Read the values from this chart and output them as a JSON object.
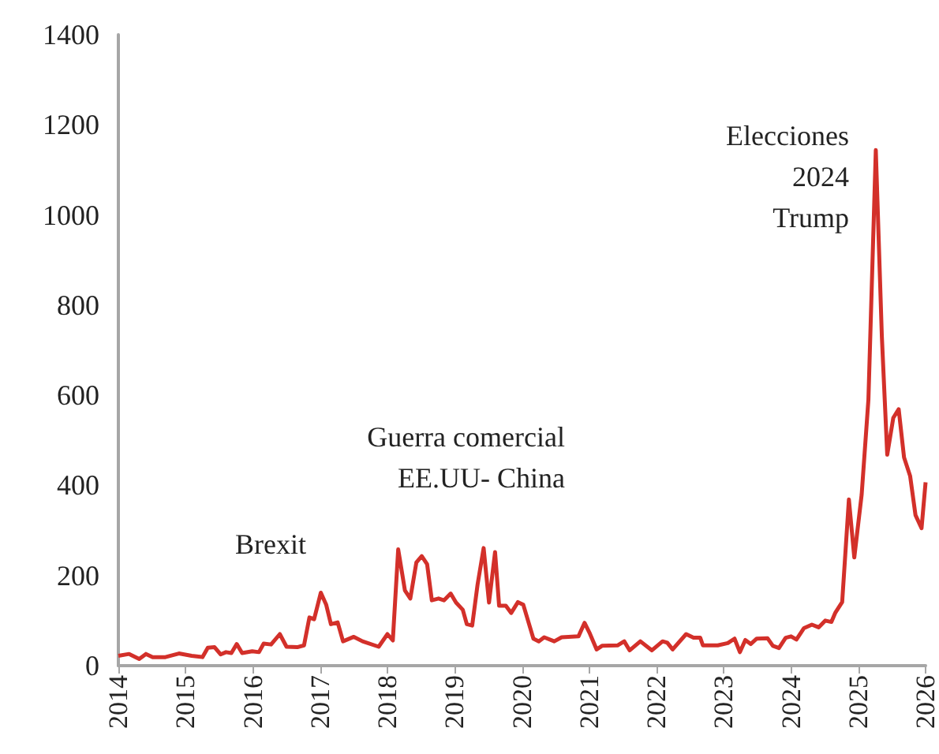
{
  "chart_data": {
    "type": "line",
    "x": [
      2014.0,
      2014.16,
      2014.31,
      2014.41,
      2014.51,
      2014.7,
      2014.9,
      2015.09,
      2015.25,
      2015.33,
      2015.43,
      2015.52,
      2015.6,
      2015.68,
      2015.76,
      2015.84,
      2015.99,
      2016.09,
      2016.16,
      2016.27,
      2016.4,
      2016.5,
      2016.66,
      2016.76,
      2016.84,
      2016.91,
      2017.01,
      2017.09,
      2017.16,
      2017.26,
      2017.34,
      2017.5,
      2017.63,
      2017.87,
      2018.0,
      2018.08,
      2018.16,
      2018.26,
      2018.34,
      2018.43,
      2018.51,
      2018.59,
      2018.66,
      2018.76,
      2018.84,
      2018.94,
      2019.02,
      2019.12,
      2019.18,
      2019.26,
      2019.34,
      2019.43,
      2019.51,
      2019.6,
      2019.66,
      2019.76,
      2019.84,
      2019.94,
      2020.02,
      2020.17,
      2020.25,
      2020.33,
      2020.48,
      2020.59,
      2020.84,
      2020.93,
      2021.01,
      2021.11,
      2021.19,
      2021.42,
      2021.52,
      2021.6,
      2021.76,
      2021.93,
      2022.09,
      2022.16,
      2022.24,
      2022.44,
      2022.55,
      2022.65,
      2022.69,
      2022.91,
      2023.06,
      2023.16,
      2023.24,
      2023.32,
      2023.4,
      2023.49,
      2023.65,
      2023.73,
      2023.82,
      2023.92,
      2024.0,
      2024.08,
      2024.19,
      2024.31,
      2024.41,
      2024.51,
      2024.6,
      2024.66,
      2024.76,
      2024.86,
      2024.94,
      2025.05,
      2025.15,
      2025.26,
      2025.35,
      2025.43,
      2025.52,
      2025.6,
      2025.68,
      2025.77,
      2025.85,
      2025.94,
      2026.0
    ],
    "series": [
      {
        "color": "#d3302a",
        "values": [
          22,
          26,
          15,
          26,
          19,
          19,
          27,
          22,
          19,
          40,
          41,
          25,
          30,
          28,
          48,
          28,
          32,
          30,
          49,
          47,
          70,
          42,
          41,
          45,
          107,
          103,
          162,
          135,
          92,
          96,
          54,
          64,
          54,
          42,
          70,
          56,
          258,
          167,
          149,
          229,
          243,
          225,
          145,
          149,
          145,
          160,
          140,
          124,
          92,
          89,
          180,
          261,
          140,
          252,
          133,
          133,
          117,
          141,
          135,
          60,
          54,
          63,
          54,
          63,
          65,
          95,
          71,
          36,
          44,
          45,
          54,
          34,
          54,
          34,
          54,
          51,
          36,
          70,
          62,
          62,
          45,
          45,
          50,
          60,
          30,
          57,
          48,
          60,
          61,
          44,
          39,
          62,
          65,
          58,
          83,
          91,
          85,
          100,
          97,
          118,
          141,
          369,
          240,
          380,
          590,
          1144,
          730,
          468,
          550,
          569,
          462,
          421,
          334,
          305,
          407
        ]
      }
    ],
    "xlim": [
      2014,
      2026
    ],
    "xticks": [
      2014,
      2015,
      2016,
      2017,
      2018,
      2019,
      2020,
      2021,
      2022,
      2023,
      2024,
      2025,
      2026
    ],
    "ylim": [
      0,
      1400
    ],
    "yticks": [
      0,
      200,
      400,
      600,
      800,
      1000,
      1200,
      1400
    ],
    "grid": false,
    "marker": "none",
    "line_style": "solid",
    "annotations": [
      "Brexit",
      "Guerra comercial\nEE.UU- China",
      "Elecciones\n2024\nTrump"
    ]
  }
}
